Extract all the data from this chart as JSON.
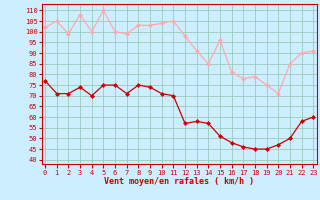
{
  "x": [
    0,
    1,
    2,
    3,
    4,
    5,
    6,
    7,
    8,
    9,
    10,
    11,
    12,
    13,
    14,
    15,
    16,
    17,
    18,
    19,
    20,
    21,
    22,
    23
  ],
  "wind_avg": [
    77,
    71,
    71,
    74,
    70,
    75,
    75,
    71,
    75,
    74,
    71,
    70,
    57,
    58,
    57,
    51,
    48,
    46,
    45,
    45,
    47,
    50,
    58,
    60
  ],
  "wind_gust": [
    102,
    105,
    99,
    108,
    100,
    110,
    100,
    99,
    103,
    103,
    104,
    105,
    98,
    91,
    85,
    96,
    81,
    78,
    79,
    75,
    71,
    85,
    90,
    91
  ],
  "avg_color": "#cc0000",
  "gust_color": "#ffaaaa",
  "bg_color": "#cceeff",
  "grid_color": "#99ccbb",
  "ylabel_ticks": [
    40,
    45,
    50,
    55,
    60,
    65,
    70,
    75,
    80,
    85,
    90,
    95,
    100,
    105,
    110
  ],
  "ylim": [
    38,
    113
  ],
  "xlim": [
    -0.3,
    23.3
  ],
  "xlabel": "Vent moyen/en rafales ( km/h )",
  "marker": "D",
  "markersize": 2,
  "linewidth": 0.9,
  "tick_fontsize": 5.0,
  "xlabel_fontsize": 6.0
}
